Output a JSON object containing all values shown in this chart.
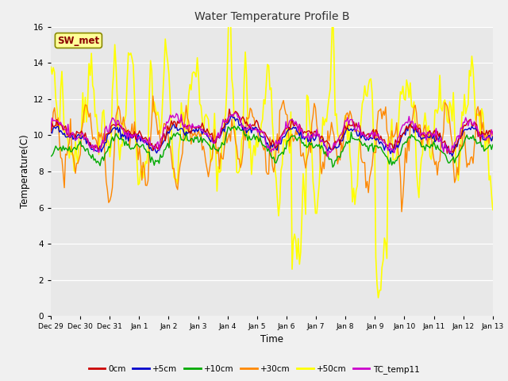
{
  "title": "Water Temperature Profile B",
  "xlabel": "Time",
  "ylabel": "Temperature(C)",
  "ylim": [
    0,
    16
  ],
  "yticks": [
    0,
    2,
    4,
    6,
    8,
    10,
    12,
    14,
    16
  ],
  "fig_bg": "#f0f0f0",
  "plot_bg": "#e8e8e8",
  "annotation_text": "SW_met",
  "annotation_color": "#8b0000",
  "annotation_bg": "#ffff99",
  "annotation_edge": "#888800",
  "series": {
    "0cm": {
      "color": "#cc0000",
      "lw": 1.0
    },
    "+5cm": {
      "color": "#0000cc",
      "lw": 1.0
    },
    "+10cm": {
      "color": "#00aa00",
      "lw": 1.0
    },
    "+30cm": {
      "color": "#ff8800",
      "lw": 1.0
    },
    "+50cm": {
      "color": "#ffff00",
      "lw": 1.2
    },
    "TC_temp11": {
      "color": "#cc00cc",
      "lw": 1.0
    }
  },
  "xtick_labels": [
    "Dec 29",
    "Dec 30",
    "Dec 31",
    "Jan 1",
    "Jan 2",
    "Jan 3",
    "Jan 4",
    "Jan 5",
    "Jan 6",
    "Jan 7",
    "Jan 8",
    "Jan 9",
    "Jan 10",
    "Jan 11",
    "Jan 12",
    "Jan 13"
  ],
  "num_points": 360
}
